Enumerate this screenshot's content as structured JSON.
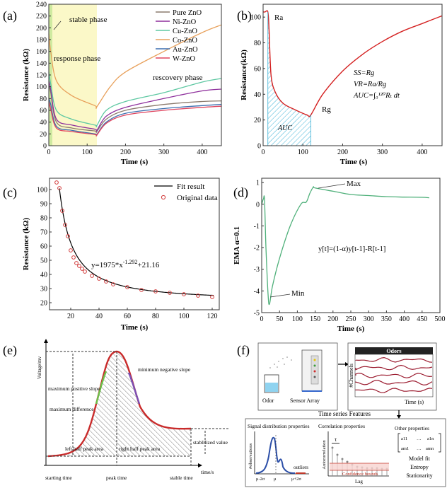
{
  "panels": {
    "a": {
      "letter": "(a)",
      "ylabel": "Resistance (kΩ)",
      "xlabel": "Time (s)",
      "phases": [
        "stable phase",
        "response phase",
        "rescovery phase"
      ],
      "yticks": [
        "0",
        "20",
        "40",
        "60",
        "80",
        "100",
        "120",
        "140",
        "160",
        "180",
        "200",
        "220",
        "240"
      ],
      "xticks": [
        "0",
        "100",
        "200",
        "300",
        "400"
      ],
      "legend": [
        {
          "name": "Pure ZnO",
          "color": "#8c7b6e"
        },
        {
          "name": "Ni-ZnO",
          "color": "#8e2f9c"
        },
        {
          "name": "Cu-ZnO",
          "color": "#5ec8a2"
        },
        {
          "name": "Co-ZnO",
          "color": "#e8a15c"
        },
        {
          "name": "Au-ZnO",
          "color": "#3c6fb0"
        },
        {
          "name": "W-ZnO",
          "color": "#e0455f"
        }
      ]
    },
    "b": {
      "letter": "(b)",
      "ylabel": "Resistance(kΩ)",
      "xlabel": "Time (s)",
      "yticks": [
        "0",
        "20",
        "40",
        "60",
        "80",
        "100"
      ],
      "xticks": [
        "0",
        "100",
        "200",
        "300",
        "400"
      ],
      "ra": "Ra",
      "rg": "Rg",
      "auc": "AUC",
      "eq1": "SS=Rg",
      "eq2": "VR=Ra/Rg",
      "eq3": "AUC=∫₀¹²⁰Rₜ dt"
    },
    "c": {
      "letter": "(c)",
      "ylabel": "Resistance (kΩ)",
      "xlabel": "Time (s)",
      "yticks": [
        "20",
        "30",
        "40",
        "50",
        "60",
        "70",
        "80",
        "90",
        "100"
      ],
      "xticks": [
        "20",
        "40",
        "60",
        "80",
        "100",
        "120"
      ],
      "legend_fit": "Fit result",
      "legend_data": "Original data",
      "equation": "y=1975*x^-1.292+21.16"
    },
    "d": {
      "letter": "(d)",
      "ylabel": "EMA α=0.1",
      "xlabel": "Time (s)",
      "yticks": [
        "1",
        "0",
        "-1",
        "-2",
        "-3",
        "-4",
        "-5"
      ],
      "xticks": [
        "0",
        "50",
        "100",
        "150",
        "200",
        "250",
        "300",
        "350",
        "400",
        "450",
        "500"
      ],
      "max": "Max",
      "min": "Min",
      "equation": "y[t]=(1-α)y[t-1]-R[t-1]"
    },
    "e": {
      "letter": "(e)",
      "ylabel": "Voltage/mv",
      "xlabel": "time/s",
      "labels": {
        "max_pos_slope": "maximum positive slope",
        "min_neg_slope": "minimum negative slope",
        "max_diff": "maximum difference",
        "left_area": "left half peak area",
        "right_area": "right half peak area",
        "stable_value": "stablilized value",
        "starting_time": "starting time",
        "peak_time": "peak time",
        "stable_time": "stable time"
      }
    },
    "f": {
      "letter": "(f)",
      "odors": "Odors",
      "channels": "#Channels",
      "time": "Time (s)",
      "odor": "Odor",
      "sensor_array": "Sensor Array",
      "features_title": "Time series Features",
      "signal_title": "Signal distribution properties",
      "signal_ylabel": "#observations",
      "outliers": "outliers",
      "signal_ticks": [
        "μ-2σ",
        "μ",
        "μ+2σ"
      ],
      "corr_title": "Correlation properties",
      "corr_ylabel": "Autocorrelation",
      "tau": "τ",
      "confidence": "Confidence bounds",
      "lag": "Lag",
      "other_title": "Other properties",
      "other_items": [
        "Model fit",
        "Entropy",
        "Stationarity"
      ],
      "matrix": [
        "a11",
        "…",
        "a1n",
        "am1",
        "…",
        "amn"
      ]
    }
  },
  "chart_data": [
    {
      "type": "line",
      "panel": "a",
      "xlabel": "Time (s)",
      "ylabel": "Resistance (kΩ)",
      "xlim": [
        0,
        450
      ],
      "ylim": [
        0,
        240
      ],
      "series": [
        {
          "name": "Pure ZnO",
          "x": [
            0,
            5,
            20,
            60,
            120,
            125,
            150,
            200,
            300,
            400,
            450
          ],
          "y": [
            100,
            90,
            40,
            30,
            25,
            24,
            45,
            60,
            70,
            75,
            76
          ]
        },
        {
          "name": "Ni-ZnO",
          "x": [
            0,
            5,
            20,
            60,
            120,
            125,
            150,
            200,
            300,
            400,
            450
          ],
          "y": [
            110,
            95,
            45,
            35,
            28,
            26,
            50,
            65,
            80,
            93,
            96
          ]
        },
        {
          "name": "Cu-ZnO",
          "x": [
            0,
            5,
            20,
            60,
            120,
            125,
            150,
            200,
            300,
            400,
            450
          ],
          "y": [
            125,
            105,
            60,
            45,
            35,
            34,
            60,
            75,
            90,
            108,
            114
          ]
        },
        {
          "name": "Co-ZnO",
          "x": [
            0,
            5,
            20,
            60,
            120,
            125,
            160,
            200,
            300,
            400,
            450
          ],
          "y": [
            190,
            160,
            110,
            85,
            68,
            66,
            100,
            125,
            160,
            192,
            205
          ]
        },
        {
          "name": "Au-ZnO",
          "x": [
            0,
            5,
            20,
            60,
            120,
            125,
            150,
            200,
            300,
            400,
            450
          ],
          "y": [
            80,
            70,
            33,
            26,
            20,
            19,
            40,
            55,
            63,
            68,
            70
          ]
        },
        {
          "name": "W-ZnO",
          "x": [
            0,
            5,
            20,
            60,
            120,
            125,
            150,
            200,
            300,
            400,
            450
          ],
          "y": [
            75,
            62,
            30,
            24,
            19,
            18,
            38,
            52,
            60,
            65,
            67
          ]
        }
      ]
    },
    {
      "type": "line",
      "panel": "b",
      "xlabel": "Time (s)",
      "ylabel": "Resistance(kΩ)",
      "xlim": [
        0,
        450
      ],
      "ylim": [
        0,
        110
      ],
      "series": [
        {
          "x": [
            0,
            5,
            12,
            15,
            20,
            30,
            50,
            80,
            110,
            120,
            150,
            200,
            250,
            300,
            350,
            400,
            450
          ],
          "y": [
            104,
            104,
            104,
            90,
            55,
            42,
            33,
            28,
            24,
            24,
            40,
            58,
            71,
            81,
            89,
            95,
            101
          ]
        }
      ]
    },
    {
      "type": "scatter",
      "panel": "c",
      "xlabel": "Time (s)",
      "ylabel": "Resistance (kΩ)",
      "xlim": [
        5,
        125
      ],
      "ylim": [
        15,
        108
      ],
      "series": [
        {
          "name": "Original data",
          "x": [
            10,
            12,
            14,
            16,
            18,
            20,
            22,
            24,
            26,
            28,
            30,
            35,
            40,
            45,
            50,
            60,
            70,
            80,
            90,
            100,
            110,
            120
          ],
          "y": [
            105,
            101,
            85,
            75,
            67,
            57,
            52,
            48,
            46,
            44,
            42,
            39,
            37,
            35,
            33,
            31,
            29,
            28,
            27,
            26,
            25,
            24
          ]
        },
        {
          "name": "Fit result",
          "formula": "y=1975*x^-1.292+21.16"
        }
      ]
    },
    {
      "type": "line",
      "panel": "d",
      "xlabel": "Time (s)",
      "ylabel": "EMA α=0.1",
      "xlim": [
        0,
        500
      ],
      "ylim": [
        -5,
        1.2
      ],
      "series": [
        {
          "x": [
            0,
            5,
            8,
            12,
            18,
            22,
            30,
            50,
            80,
            110,
            125,
            135,
            145,
            150,
            200,
            250,
            300,
            350,
            400,
            450,
            470
          ],
          "y": [
            0,
            0.25,
            0.2,
            -2,
            -4.2,
            -4.6,
            -3.8,
            -2.5,
            -1,
            0,
            0.1,
            0.5,
            0.8,
            0.75,
            0.6,
            0.45,
            0.4,
            0.35,
            0.33,
            0.32,
            0.3
          ]
        }
      ]
    }
  ]
}
